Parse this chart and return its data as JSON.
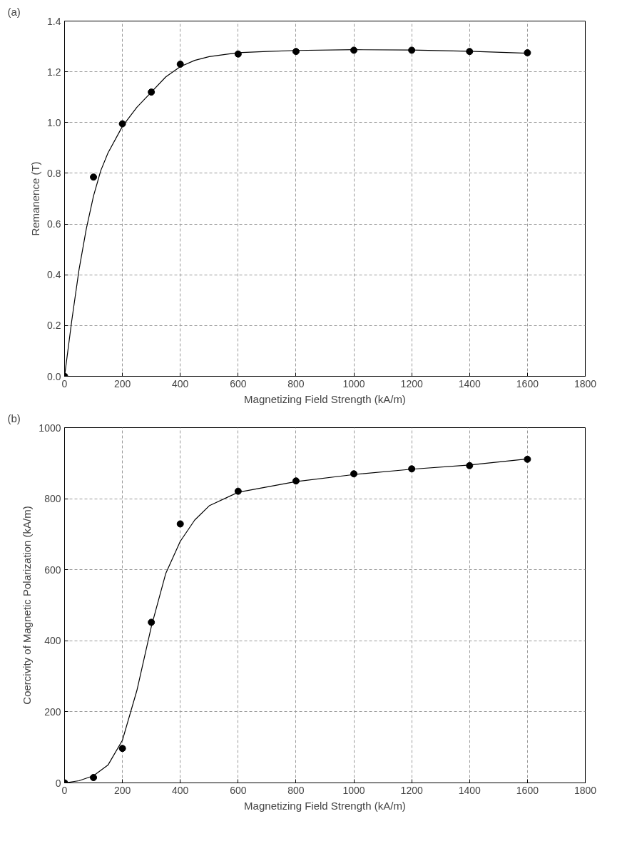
{
  "chart_data": [
    {
      "type": "scatter",
      "annotations": [
        "(a)"
      ],
      "xlabel": "Magnetizing Field Strength (kA/m)",
      "ylabel": "Remanence (T)",
      "xlim": [
        0,
        1800
      ],
      "xticks": [
        0,
        200,
        400,
        600,
        800,
        1000,
        1200,
        1400,
        1600,
        1800
      ],
      "ylim": [
        0,
        1.4
      ],
      "yticks": [
        {
          "value": 0,
          "label": "0.0"
        },
        {
          "value": 0.2,
          "label": "0.2"
        },
        {
          "value": 0.4,
          "label": "0.4"
        },
        {
          "value": 0.6,
          "label": "0.6"
        },
        {
          "value": 0.8,
          "label": "0.8"
        },
        {
          "value": 1.0,
          "label": "1.0"
        },
        {
          "value": 1.2,
          "label": "1.2"
        },
        {
          "value": 1.4,
          "label": "1.4"
        }
      ],
      "grid": true,
      "series": [
        {
          "marker": "circle",
          "color": "#000000",
          "x": [
            0,
            100,
            200,
            300,
            400,
            600,
            800,
            1000,
            1200,
            1400,
            1600
          ],
          "values": [
            0,
            0.785,
            0.995,
            1.12,
            1.23,
            1.27,
            1.28,
            1.285,
            1.285,
            1.28,
            1.275
          ]
        },
        {
          "type": "line",
          "marker": "none",
          "line_style": "solid",
          "color": "#000000",
          "x": [
            0,
            25,
            50,
            75,
            100,
            125,
            150,
            200,
            250,
            300,
            350,
            400,
            450,
            500,
            600,
            700,
            800,
            1000,
            1200,
            1400,
            1600
          ],
          "values": [
            0,
            0.22,
            0.42,
            0.58,
            0.71,
            0.81,
            0.88,
            0.985,
            1.06,
            1.12,
            1.18,
            1.22,
            1.245,
            1.26,
            1.275,
            1.28,
            1.284,
            1.287,
            1.286,
            1.281,
            1.273
          ]
        }
      ]
    },
    {
      "type": "scatter",
      "annotations": [
        "(b)"
      ],
      "xlabel": "Magnetizing Field Strength (kA/m)",
      "ylabel": "Coercivity of Magnetic Polarization (kA/m)",
      "xlim": [
        0,
        1800
      ],
      "xticks": [
        0,
        200,
        400,
        600,
        800,
        1000,
        1200,
        1400,
        1600,
        1800
      ],
      "ylim": [
        0,
        1000
      ],
      "yticks": [
        0,
        200,
        400,
        600,
        800,
        1000
      ],
      "grid": true,
      "series": [
        {
          "marker": "circle",
          "color": "#000000",
          "x": [
            0,
            100,
            200,
            300,
            400,
            600,
            800,
            1000,
            1200,
            1400,
            1600
          ],
          "values": [
            0,
            15,
            97,
            452,
            729,
            821,
            850,
            870,
            884,
            893,
            911
          ]
        },
        {
          "type": "line",
          "marker": "none",
          "line_style": "solid",
          "color": "#000000",
          "x": [
            0,
            50,
            100,
            150,
            200,
            250,
            300,
            350,
            400,
            450,
            500,
            600,
            800,
            1000,
            1200,
            1400,
            1600
          ],
          "values": [
            0,
            6,
            20,
            50,
            120,
            260,
            440,
            590,
            680,
            740,
            780,
            818,
            848,
            868,
            883,
            895,
            912
          ]
        }
      ]
    }
  ]
}
